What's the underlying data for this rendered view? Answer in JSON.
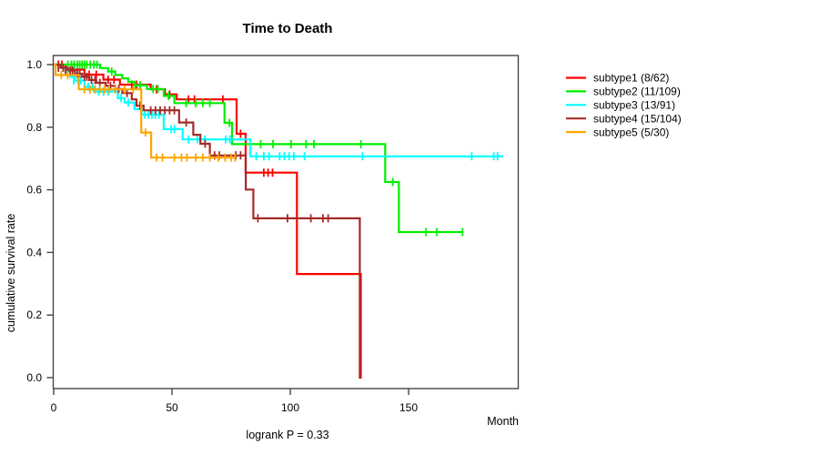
{
  "page": {
    "background": "#ffffff"
  },
  "chart_data": {
    "type": "line",
    "subtype": "kaplan-meier-survival-steps",
    "title": "Time to Death",
    "xlabel": "Month",
    "ylabel": "cumulative survival rate",
    "annotation": "logrank P = 0.33",
    "xlim": [
      0,
      196
    ],
    "ylim": [
      0.0,
      1.0
    ],
    "grid": false,
    "legend_position": "right-outside",
    "axis_color": "#454545",
    "text_color": "#000000",
    "xticks": {
      "values": [
        0,
        50,
        100,
        150
      ],
      "labels": [
        "0",
        "50",
        "100",
        "150"
      ]
    },
    "yticks": {
      "values": [
        0.0,
        0.2,
        0.4,
        0.6,
        0.8,
        1.0
      ],
      "labels": [
        "0.0",
        "0.2",
        "0.4",
        "0.6",
        "0.8",
        "1.0"
      ]
    },
    "series": [
      {
        "name": "subtype1",
        "legend_label": "subtype1 (8/62)",
        "events_over_n": "8/62",
        "color": "#ff0000",
        "end_month": 130.2,
        "steps": [
          [
            0,
            1.0
          ],
          [
            5,
            0.984
          ],
          [
            13,
            0.968
          ],
          [
            21,
            0.952
          ],
          [
            28,
            0.936
          ],
          [
            41,
            0.921
          ],
          [
            47,
            0.905
          ],
          [
            52,
            0.889
          ],
          [
            77.3,
            0.779
          ],
          [
            81.1,
            0.655
          ],
          [
            102.8,
            0.331
          ],
          [
            129.8,
            0.0
          ]
        ],
        "censor_ticks": [
          [
            2,
            1.0
          ],
          [
            3.5,
            1.0
          ],
          [
            15,
            0.968
          ],
          [
            18,
            0.968
          ],
          [
            23,
            0.952
          ],
          [
            25.5,
            0.952
          ],
          [
            33,
            0.936
          ],
          [
            35,
            0.936
          ],
          [
            43.5,
            0.921
          ],
          [
            49,
            0.905
          ],
          [
            57,
            0.889
          ],
          [
            59.5,
            0.889
          ],
          [
            71.5,
            0.889
          ],
          [
            79,
            0.779
          ],
          [
            88.8,
            0.655
          ],
          [
            90.6,
            0.655
          ],
          [
            92.5,
            0.655
          ]
        ]
      },
      {
        "name": "subtype2",
        "legend_label": "subtype2 (11/109)",
        "events_over_n": "11/109",
        "color": "#00ee00",
        "end_month": 172.8,
        "steps": [
          [
            0,
            1.0
          ],
          [
            19.6,
            0.989
          ],
          [
            23,
            0.978
          ],
          [
            26,
            0.967
          ],
          [
            29,
            0.956
          ],
          [
            31.5,
            0.945
          ],
          [
            34,
            0.934
          ],
          [
            39.4,
            0.922
          ],
          [
            46.5,
            0.9
          ],
          [
            51,
            0.877
          ],
          [
            72.2,
            0.814
          ],
          [
            75.4,
            0.746
          ],
          [
            140.1,
            0.625
          ],
          [
            145.9,
            0.465
          ]
        ],
        "censor_ticks": [
          [
            6,
            1.0
          ],
          [
            7.5,
            1.0
          ],
          [
            8.7,
            1.0
          ],
          [
            10,
            1.0
          ],
          [
            11,
            1.0
          ],
          [
            12,
            1.0
          ],
          [
            13,
            1.0
          ],
          [
            14,
            1.0
          ],
          [
            15.5,
            1.0
          ],
          [
            17,
            1.0
          ],
          [
            18.3,
            1.0
          ],
          [
            24.5,
            0.978
          ],
          [
            34.5,
            0.934
          ],
          [
            36.5,
            0.934
          ],
          [
            42,
            0.922
          ],
          [
            44,
            0.922
          ],
          [
            48.5,
            0.9
          ],
          [
            56,
            0.877
          ],
          [
            60,
            0.877
          ],
          [
            63,
            0.877
          ],
          [
            66,
            0.877
          ],
          [
            74.3,
            0.814
          ],
          [
            87.5,
            0.746
          ],
          [
            92.7,
            0.746
          ],
          [
            100.3,
            0.746
          ],
          [
            106.7,
            0.746
          ],
          [
            110,
            0.746
          ],
          [
            129.9,
            0.746
          ],
          [
            143.3,
            0.625
          ],
          [
            157.4,
            0.465
          ],
          [
            161.9,
            0.465
          ],
          [
            172.8,
            0.465
          ]
        ]
      },
      {
        "name": "subtype3",
        "legend_label": "subtype3 (13/91)",
        "events_over_n": "13/91",
        "color": "#00ffff",
        "end_month": 190,
        "steps": [
          [
            0,
            1.0
          ],
          [
            2.5,
            0.989
          ],
          [
            5,
            0.978
          ],
          [
            7,
            0.961
          ],
          [
            9,
            0.949
          ],
          [
            13,
            0.929
          ],
          [
            17,
            0.914
          ],
          [
            27.1,
            0.893
          ],
          [
            30,
            0.879
          ],
          [
            34.1,
            0.858
          ],
          [
            37.2,
            0.84
          ],
          [
            46.5,
            0.794
          ],
          [
            54.5,
            0.761
          ],
          [
            83.1,
            0.707
          ]
        ],
        "censor_ticks": [
          [
            8.5,
            0.949
          ],
          [
            10.3,
            0.949
          ],
          [
            11.5,
            0.949
          ],
          [
            14.6,
            0.929
          ],
          [
            16.5,
            0.929
          ],
          [
            19,
            0.914
          ],
          [
            21,
            0.914
          ],
          [
            23,
            0.914
          ],
          [
            28.5,
            0.893
          ],
          [
            31.5,
            0.879
          ],
          [
            38.5,
            0.84
          ],
          [
            40,
            0.84
          ],
          [
            41.5,
            0.84
          ],
          [
            43,
            0.84
          ],
          [
            44.5,
            0.84
          ],
          [
            49.6,
            0.794
          ],
          [
            51,
            0.794
          ],
          [
            57,
            0.761
          ],
          [
            60.7,
            0.761
          ],
          [
            63.9,
            0.761
          ],
          [
            72.7,
            0.761
          ],
          [
            74.5,
            0.761
          ],
          [
            85.6,
            0.707
          ],
          [
            88.8,
            0.707
          ],
          [
            91,
            0.707
          ],
          [
            95.5,
            0.707
          ],
          [
            97.5,
            0.707
          ],
          [
            99.5,
            0.707
          ],
          [
            101.5,
            0.707
          ],
          [
            106,
            0.707
          ],
          [
            130.5,
            0.707
          ],
          [
            176.7,
            0.707
          ],
          [
            186,
            0.707
          ],
          [
            187.6,
            0.707
          ]
        ]
      },
      {
        "name": "subtype4",
        "legend_label": "subtype4 (15/104)",
        "events_over_n": "15/104",
        "color": "#a52a2a",
        "end_month": 129.5,
        "steps": [
          [
            0,
            1.0
          ],
          [
            3,
            0.99
          ],
          [
            6,
            0.981
          ],
          [
            9,
            0.971
          ],
          [
            12,
            0.961
          ],
          [
            15,
            0.951
          ],
          [
            18,
            0.942
          ],
          [
            22,
            0.932
          ],
          [
            26,
            0.922
          ],
          [
            29,
            0.909
          ],
          [
            33,
            0.889
          ],
          [
            35,
            0.869
          ],
          [
            38,
            0.854
          ],
          [
            53,
            0.815
          ],
          [
            59,
            0.776
          ],
          [
            62,
            0.747
          ],
          [
            66,
            0.71
          ],
          [
            81.2,
            0.601
          ],
          [
            84.4,
            0.509
          ],
          [
            129.4,
            0.0
          ]
        ],
        "censor_ticks": [
          [
            2,
            0.99
          ],
          [
            4,
            0.99
          ],
          [
            5,
            0.981
          ],
          [
            7,
            0.981
          ],
          [
            8,
            0.981
          ],
          [
            10,
            0.971
          ],
          [
            11,
            0.971
          ],
          [
            13,
            0.961
          ],
          [
            14,
            0.961
          ],
          [
            16,
            0.951
          ],
          [
            17.5,
            0.951
          ],
          [
            19.5,
            0.942
          ],
          [
            24,
            0.932
          ],
          [
            27.5,
            0.922
          ],
          [
            31,
            0.909
          ],
          [
            36.5,
            0.869
          ],
          [
            41,
            0.854
          ],
          [
            43,
            0.854
          ],
          [
            45,
            0.854
          ],
          [
            47,
            0.854
          ],
          [
            49,
            0.854
          ],
          [
            51,
            0.854
          ],
          [
            56,
            0.815
          ],
          [
            64,
            0.747
          ],
          [
            68,
            0.71
          ],
          [
            70,
            0.71
          ],
          [
            77,
            0.71
          ],
          [
            79,
            0.71
          ],
          [
            86.3,
            0.509
          ],
          [
            98.8,
            0.509
          ],
          [
            108.7,
            0.509
          ],
          [
            113.8,
            0.509
          ],
          [
            116,
            0.509
          ]
        ]
      },
      {
        "name": "subtype5",
        "legend_label": "subtype5 (5/30)",
        "events_over_n": "5/30",
        "color": "#ffa500",
        "end_month": 76.7,
        "steps": [
          [
            0,
            1.0
          ],
          [
            0.8,
            0.967
          ],
          [
            10.6,
            0.921
          ],
          [
            37,
            0.783
          ],
          [
            41.2,
            0.703
          ]
        ],
        "censor_ticks": [
          [
            3.2,
            0.967
          ],
          [
            5.9,
            0.967
          ],
          [
            13,
            0.921
          ],
          [
            15.4,
            0.921
          ],
          [
            17.5,
            0.921
          ],
          [
            19.5,
            0.921
          ],
          [
            21.5,
            0.921
          ],
          [
            23.5,
            0.921
          ],
          [
            26,
            0.921
          ],
          [
            30,
            0.921
          ],
          [
            33.6,
            0.921
          ],
          [
            38.8,
            0.783
          ],
          [
            43.5,
            0.703
          ],
          [
            46,
            0.703
          ],
          [
            51,
            0.703
          ],
          [
            54,
            0.703
          ],
          [
            56.3,
            0.703
          ],
          [
            60,
            0.703
          ],
          [
            63,
            0.703
          ],
          [
            66,
            0.703
          ],
          [
            69.6,
            0.703
          ],
          [
            72.5,
            0.703
          ],
          [
            75,
            0.703
          ],
          [
            76.7,
            0.703
          ]
        ]
      }
    ]
  }
}
